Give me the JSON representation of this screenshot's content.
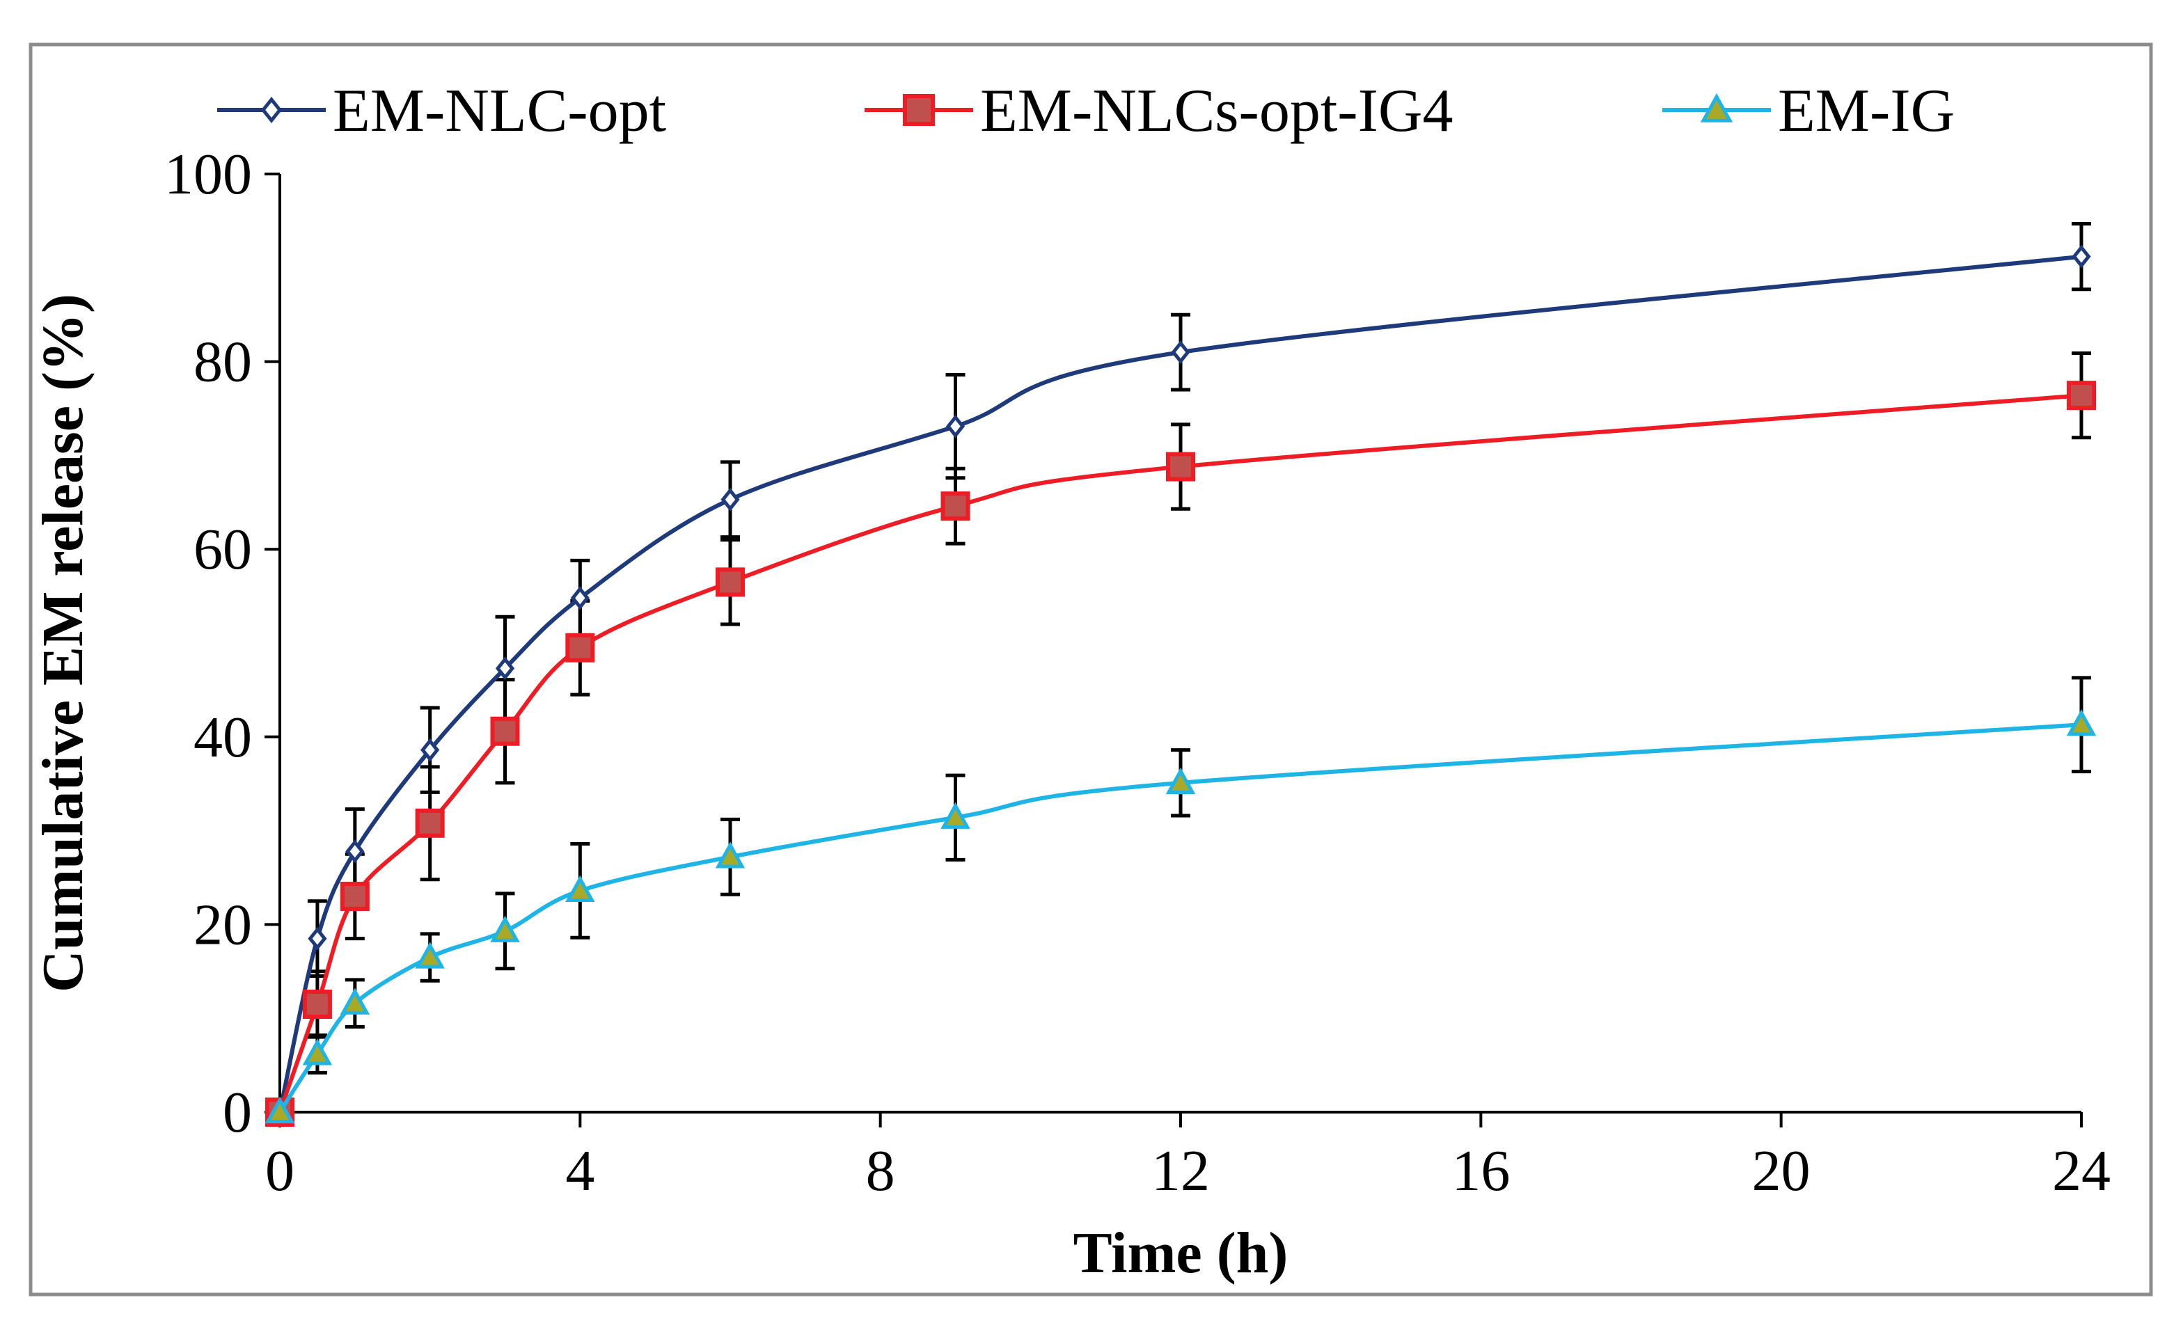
{
  "chart_data": {
    "type": "line",
    "title": "",
    "xlabel": "Time (h)",
    "ylabel": "Cumulative  EM release (%)",
    "xlim": [
      0,
      24
    ],
    "ylim": [
      0,
      100
    ],
    "x_ticks": [
      0,
      4,
      8,
      12,
      16,
      20,
      24
    ],
    "y_ticks": [
      0,
      20,
      40,
      60,
      80,
      100
    ],
    "x_tick_labels": [
      "0",
      "4",
      "8",
      "12",
      "16",
      "20",
      "24"
    ],
    "y_tick_labels": [
      "0",
      "20",
      "40",
      "60",
      "80",
      "100"
    ],
    "legend_position": "top",
    "grid": false,
    "x": [
      0,
      0.5,
      1,
      2,
      3,
      4,
      6,
      9,
      12,
      24
    ],
    "series": [
      {
        "name": "EM-NLC-opt",
        "color": "#1f3a7a",
        "marker": "diamond",
        "marker_fill": "#ffffff",
        "values": [
          0,
          18.5,
          27.8,
          38.6,
          47.3,
          54.8,
          65.3,
          73.1,
          81.0,
          91.2
        ],
        "errors": [
          0,
          4.0,
          4.5,
          4.5,
          5.5,
          4.0,
          4.0,
          5.5,
          4.0,
          3.5
        ]
      },
      {
        "name": "EM-NLCs-opt-IG4",
        "color": "#ee1c24",
        "marker": "square",
        "marker_fill": "#c0504d",
        "values": [
          0,
          11.5,
          23.0,
          30.8,
          40.6,
          49.5,
          56.5,
          64.6,
          68.8,
          76.4
        ],
        "errors": [
          0,
          3.5,
          4.5,
          6.0,
          5.5,
          5.0,
          4.5,
          4.0,
          4.5,
          4.5
        ]
      },
      {
        "name": "EM-IG",
        "color": "#1fb4e6",
        "marker": "triangle",
        "marker_fill": "#a9a928",
        "values": [
          0,
          6.2,
          11.6,
          16.5,
          19.3,
          23.6,
          27.2,
          31.4,
          35.1,
          41.3
        ],
        "errors": [
          0,
          2.0,
          2.5,
          2.5,
          4.0,
          5.0,
          4.0,
          4.5,
          3.5,
          5.0
        ]
      }
    ]
  }
}
